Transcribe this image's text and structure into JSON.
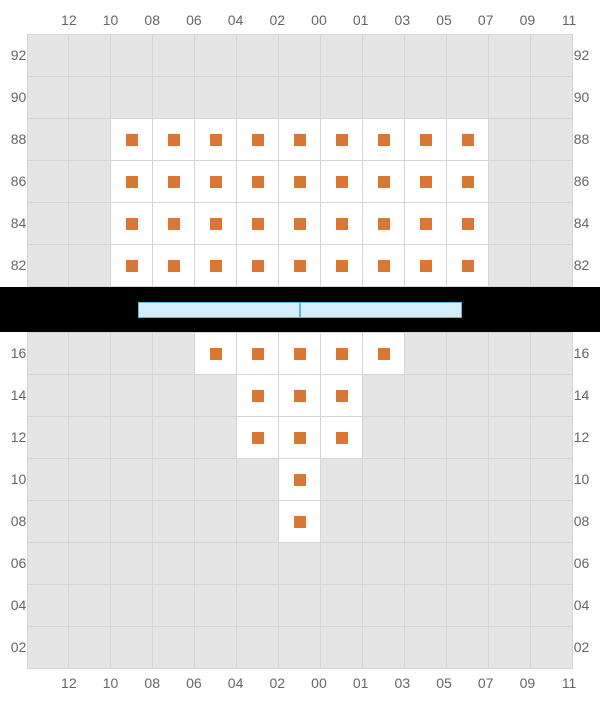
{
  "columns": [
    "12",
    "10",
    "08",
    "06",
    "04",
    "02",
    "00",
    "01",
    "03",
    "05",
    "07",
    "09",
    "11"
  ],
  "top": {
    "rows": [
      "92",
      "90",
      "88",
      "86",
      "84",
      "82"
    ],
    "seats": {
      "88": [
        "08",
        "06",
        "04",
        "02",
        "00",
        "01",
        "03",
        "05",
        "07"
      ],
      "86": [
        "08",
        "06",
        "04",
        "02",
        "00",
        "01",
        "03",
        "05",
        "07"
      ],
      "84": [
        "08",
        "06",
        "04",
        "02",
        "00",
        "01",
        "03",
        "05",
        "07"
      ],
      "82": [
        "08",
        "06",
        "04",
        "02",
        "00",
        "01",
        "03",
        "05",
        "07"
      ]
    }
  },
  "bottom": {
    "rows": [
      "16",
      "14",
      "12",
      "10",
      "08",
      "06",
      "04",
      "02"
    ],
    "seats": {
      "16": [
        "04",
        "02",
        "00",
        "01",
        "03"
      ],
      "14": [
        "02",
        "00",
        "01"
      ],
      "12": [
        "02",
        "00",
        "01"
      ],
      "10": [
        "00"
      ],
      "08": [
        "00"
      ]
    }
  },
  "colors": {
    "marker": "#db7734",
    "emptyCell": "#e5e5e5",
    "seatCell": "#ffffff",
    "gridLine": "#d5d5d5",
    "separator": "#000000",
    "stageFill": "#d4effa",
    "stageBorder": "#62b8d8",
    "label": "#666666"
  },
  "stage": {
    "leftWidth": 162,
    "rightWidth": 162,
    "paddingLeft": 0
  }
}
